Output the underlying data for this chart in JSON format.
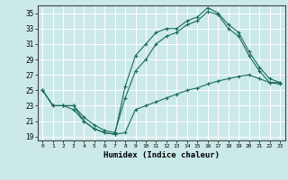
{
  "xlabel": "Humidex (Indice chaleur)",
  "bg_color": "#cce9e9",
  "grid_color": "#ffffff",
  "line_color": "#1a6b5a",
  "xlim": [
    -0.5,
    23.5
  ],
  "ylim": [
    18.5,
    36.0
  ],
  "yticks": [
    19,
    21,
    23,
    25,
    27,
    29,
    31,
    33,
    35
  ],
  "xticks": [
    0,
    1,
    2,
    3,
    4,
    5,
    6,
    7,
    8,
    9,
    10,
    11,
    12,
    13,
    14,
    15,
    16,
    17,
    18,
    19,
    20,
    21,
    22,
    23
  ],
  "line1_x": [
    0,
    1,
    2,
    3,
    4,
    5,
    6,
    7,
    8,
    9,
    10,
    11,
    12,
    13,
    14,
    15,
    16,
    17,
    18,
    19,
    20,
    21,
    22,
    23
  ],
  "line1_y": [
    25.0,
    23.0,
    23.0,
    23.0,
    21.0,
    20.0,
    19.5,
    19.3,
    25.5,
    29.5,
    31.0,
    32.5,
    33.0,
    33.0,
    34.0,
    34.5,
    35.7,
    35.0,
    33.5,
    32.5,
    30.0,
    28.0,
    26.5,
    26.0
  ],
  "line2_x": [
    0,
    1,
    2,
    3,
    4,
    5,
    6,
    7,
    8,
    9,
    10,
    11,
    12,
    13,
    14,
    15,
    16,
    17,
    18,
    19,
    20,
    21,
    22,
    23
  ],
  "line2_y": [
    25.0,
    23.0,
    23.0,
    23.0,
    21.5,
    20.5,
    19.8,
    19.5,
    24.0,
    27.5,
    29.0,
    31.0,
    32.0,
    32.5,
    33.5,
    34.0,
    35.2,
    34.8,
    33.0,
    32.0,
    29.5,
    27.5,
    26.0,
    25.8
  ],
  "line3_x": [
    0,
    1,
    2,
    3,
    4,
    5,
    6,
    7,
    8,
    9,
    10,
    11,
    12,
    13,
    14,
    15,
    16,
    17,
    18,
    19,
    20,
    21,
    22,
    23
  ],
  "line3_y": [
    25.0,
    23.0,
    23.0,
    22.5,
    21.0,
    20.0,
    19.5,
    19.3,
    19.5,
    22.5,
    23.0,
    23.5,
    24.0,
    24.5,
    25.0,
    25.3,
    25.8,
    26.2,
    26.5,
    26.8,
    27.0,
    26.5,
    26.0,
    26.0
  ]
}
